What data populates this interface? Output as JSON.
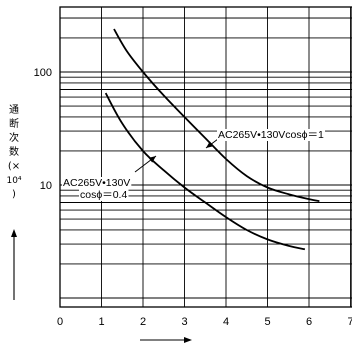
{
  "chart_data": {
    "type": "line",
    "x_ticks": [
      "0",
      "1",
      "2",
      "3",
      "4",
      "5",
      "6",
      "7"
    ],
    "y_ticks": [
      "10",
      "100"
    ],
    "y_scale": "log",
    "xlim": [
      0,
      7
    ],
    "ylim": [
      1,
      300
    ],
    "grid": true,
    "ylabel_chars": [
      "通",
      "断",
      "次",
      "数",
      "(×",
      "10⁴",
      ")"
    ],
    "series": [
      {
        "x": [
          1.3,
          1.6,
          2.0,
          2.5,
          3.0,
          3.5,
          4.0,
          4.5,
          5.0,
          5.5,
          6.0,
          6.25
        ],
        "y": [
          240,
          155,
          100,
          62,
          40,
          26,
          17,
          12,
          9.5,
          8.3,
          7.5,
          7.2
        ]
      },
      {
        "x": [
          1.1,
          1.5,
          2.0,
          2.5,
          3.0,
          3.5,
          4.0,
          4.5,
          5.0,
          5.5,
          5.9
        ],
        "y": [
          65,
          35,
          20,
          13.5,
          9.5,
          7.0,
          5.2,
          4.0,
          3.3,
          2.9,
          2.7
        ]
      }
    ],
    "annotations": [
      {
        "text": "AC265V•130Vcosϕ＝1"
      },
      {
        "text": "AC265V•130V"
      },
      {
        "text": "cosϕ＝0.4"
      }
    ]
  }
}
